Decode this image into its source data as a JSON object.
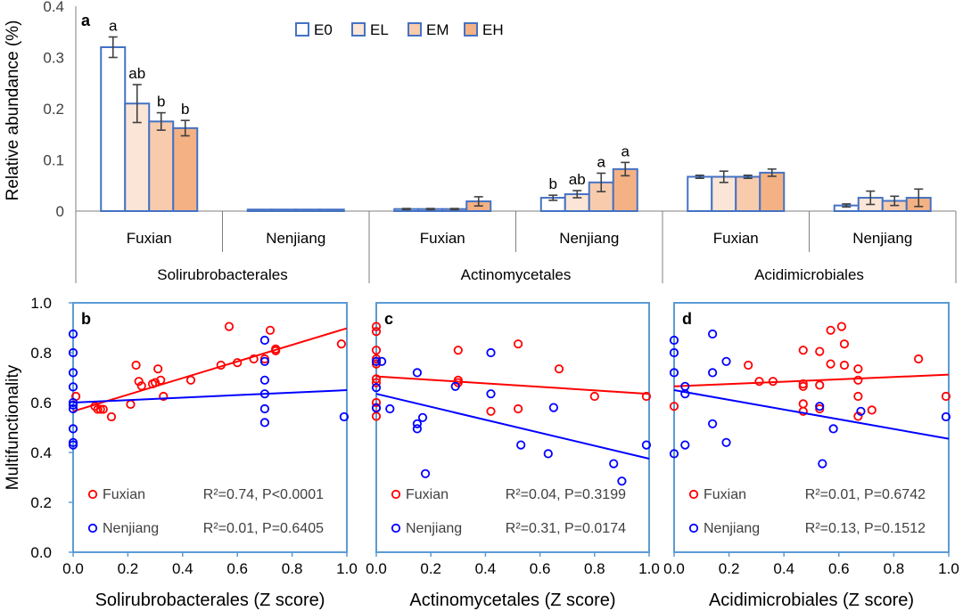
{
  "colors": {
    "E0": "#ffffff",
    "EL": "#fbe5d6",
    "EM": "#f8cbad",
    "EH": "#f4b183",
    "bar_edge": "#4472c4",
    "axis_blue": "#5b9bd5",
    "fuxian": "#ff0000",
    "nenjiang": "#0000ff",
    "error": "#404040"
  },
  "chart_data": [
    {
      "panel": "a",
      "type": "bar",
      "ylabel": "Relative abundance (%)",
      "ylim": [
        0,
        0.4
      ],
      "yticks": [
        "0",
        "0.1",
        "0.2",
        "0.3",
        "0.4"
      ],
      "legend": {
        "placement": "top",
        "entries": [
          "E0",
          "EL",
          "EM",
          "EH"
        ]
      },
      "orders": [
        "Solirubrobacterales",
        "Actinomycetales",
        "Acidimicrobiales"
      ],
      "sites": [
        "Fuxian",
        "Nenjiang"
      ],
      "groups": [
        {
          "order": "Solirubrobacterales",
          "site": "Fuxian",
          "values": [
            0.32,
            0.21,
            0.175,
            0.162
          ],
          "errors": [
            0.02,
            0.037,
            0.017,
            0.015
          ],
          "letters": [
            "a",
            "ab",
            "b",
            "b"
          ]
        },
        {
          "order": "Solirubrobacterales",
          "site": "Nenjiang",
          "values": [
            0.003,
            0.003,
            0.003,
            0.003
          ],
          "errors": [
            0,
            0,
            0,
            0
          ],
          "letters": [
            "",
            "",
            "",
            ""
          ]
        },
        {
          "order": "Actinomycetales",
          "site": "Fuxian",
          "values": [
            0.004,
            0.004,
            0.004,
            0.019
          ],
          "errors": [
            0.001,
            0.001,
            0.001,
            0.009
          ],
          "letters": [
            "",
            "",
            "",
            ""
          ]
        },
        {
          "order": "Actinomycetales",
          "site": "Nenjiang",
          "values": [
            0.026,
            0.033,
            0.056,
            0.082
          ],
          "errors": [
            0.005,
            0.007,
            0.018,
            0.013
          ],
          "letters": [
            "b",
            "ab",
            "a",
            "a"
          ]
        },
        {
          "order": "Acidimicrobiales",
          "site": "Fuxian",
          "values": [
            0.067,
            0.067,
            0.067,
            0.075
          ],
          "errors": [
            0.003,
            0.011,
            0.003,
            0.007
          ],
          "letters": [
            "",
            "",
            "",
            ""
          ]
        },
        {
          "order": "Acidimicrobiales",
          "site": "Nenjiang",
          "values": [
            0.011,
            0.026,
            0.02,
            0.026
          ],
          "errors": [
            0.003,
            0.013,
            0.009,
            0.017
          ],
          "letters": [
            "",
            "",
            "",
            ""
          ]
        }
      ]
    },
    {
      "panel": "b",
      "type": "scatter",
      "xlabel": "Solirubrobacterales (Z score)",
      "ylabel": "Multifunctionality",
      "xlim": [
        0,
        1
      ],
      "ylim": [
        0,
        1
      ],
      "xticks": [
        "0.0",
        "0.2",
        "0.4",
        "0.6",
        "0.8",
        "1.0"
      ],
      "yticks": [
        "0.0",
        "0.2",
        "0.4",
        "0.6",
        "0.8",
        "1.0"
      ],
      "series": [
        {
          "name": "Fuxian",
          "stat": "R²=0.74, P<0.0001",
          "fit": [
            0.565,
            0.898
          ],
          "points": [
            [
              0.01,
              0.625
            ],
            [
              0.08,
              0.585
            ],
            [
              0.09,
              0.573
            ],
            [
              0.1,
              0.573
            ],
            [
              0.11,
              0.573
            ],
            [
              0.14,
              0.543
            ],
            [
              0.21,
              0.593
            ],
            [
              0.23,
              0.75
            ],
            [
              0.24,
              0.685
            ],
            [
              0.25,
              0.667
            ],
            [
              0.29,
              0.675
            ],
            [
              0.3,
              0.68
            ],
            [
              0.31,
              0.735
            ],
            [
              0.32,
              0.69
            ],
            [
              0.33,
              0.625
            ],
            [
              0.43,
              0.69
            ],
            [
              0.54,
              0.75
            ],
            [
              0.57,
              0.905
            ],
            [
              0.6,
              0.76
            ],
            [
              0.66,
              0.775
            ],
            [
              0.7,
              0.775
            ],
            [
              0.72,
              0.89
            ],
            [
              0.74,
              0.808
            ],
            [
              0.74,
              0.815
            ],
            [
              0.98,
              0.835
            ]
          ]
        },
        {
          "name": "Nenjiang",
          "stat": "R²=0.01, P=0.6405",
          "fit": [
            0.6,
            0.65
          ],
          "points": [
            [
              0,
              0.875
            ],
            [
              0,
              0.8
            ],
            [
              0,
              0.72
            ],
            [
              0,
              0.663
            ],
            [
              0,
              0.6
            ],
            [
              0,
              0.59
            ],
            [
              0,
              0.575
            ],
            [
              0,
              0.495
            ],
            [
              0,
              0.44
            ],
            [
              0,
              0.43
            ],
            [
              0.7,
              0.85
            ],
            [
              0.7,
              0.765
            ],
            [
              0.7,
              0.69
            ],
            [
              0.7,
              0.635
            ],
            [
              0.7,
              0.575
            ],
            [
              0.7,
              0.52
            ],
            [
              0.99,
              0.543
            ]
          ]
        }
      ]
    },
    {
      "panel": "c",
      "type": "scatter",
      "xlabel": "Actinomycetales (Z score)",
      "xlim": [
        0,
        1
      ],
      "ylim": [
        0,
        1
      ],
      "xticks": [
        "0.0",
        "0.2",
        "0.4",
        "0.6",
        "0.8",
        "1.0"
      ],
      "series": [
        {
          "name": "Fuxian",
          "stat": "R²=0.04, P=0.3199",
          "fit": [
            0.705,
            0.635
          ],
          "points": [
            [
              0,
              0.905
            ],
            [
              0,
              0.885
            ],
            [
              0,
              0.81
            ],
            [
              0,
              0.775
            ],
            [
              0,
              0.765
            ],
            [
              0,
              0.755
            ],
            [
              0,
              0.695
            ],
            [
              0,
              0.68
            ],
            [
              0,
              0.6
            ],
            [
              0,
              0.58
            ],
            [
              0,
              0.545
            ],
            [
              0.3,
              0.81
            ],
            [
              0.3,
              0.69
            ],
            [
              0.3,
              0.68
            ],
            [
              0.42,
              0.565
            ],
            [
              0.52,
              0.835
            ],
            [
              0.52,
              0.575
            ],
            [
              0.67,
              0.735
            ],
            [
              0.8,
              0.625
            ],
            [
              0.99,
              0.625
            ]
          ]
        },
        {
          "name": "Nenjiang",
          "stat": "R²=0.31, P=0.0174",
          "fit": [
            0.635,
            0.375
          ],
          "points": [
            [
              0,
              0.765
            ],
            [
              0,
              0.66
            ],
            [
              0,
              0.578
            ],
            [
              0.02,
              0.765
            ],
            [
              0.05,
              0.575
            ],
            [
              0.15,
              0.72
            ],
            [
              0.15,
              0.515
            ],
            [
              0.15,
              0.495
            ],
            [
              0.17,
              0.54
            ],
            [
              0.18,
              0.315
            ],
            [
              0.29,
              0.665
            ],
            [
              0.42,
              0.8
            ],
            [
              0.42,
              0.635
            ],
            [
              0.53,
              0.43
            ],
            [
              0.63,
              0.395
            ],
            [
              0.65,
              0.58
            ],
            [
              0.87,
              0.355
            ],
            [
              0.9,
              0.285
            ],
            [
              0.99,
              0.43
            ]
          ]
        }
      ]
    },
    {
      "panel": "d",
      "type": "scatter",
      "xlabel": "Acidimicrobiales (Z score)",
      "xlim": [
        0,
        1
      ],
      "ylim": [
        0,
        1
      ],
      "xticks": [
        "0.0",
        "0.2",
        "0.4",
        "0.6",
        "0.8",
        "1.0"
      ],
      "series": [
        {
          "name": "Fuxian",
          "stat": "R²=0.01, P=0.6742",
          "fit": [
            0.665,
            0.712
          ],
          "points": [
            [
              0,
              0.585
            ],
            [
              0.27,
              0.75
            ],
            [
              0.31,
              0.685
            ],
            [
              0.36,
              0.685
            ],
            [
              0.47,
              0.81
            ],
            [
              0.47,
              0.675
            ],
            [
              0.47,
              0.665
            ],
            [
              0.47,
              0.595
            ],
            [
              0.47,
              0.565
            ],
            [
              0.53,
              0.805
            ],
            [
              0.53,
              0.67
            ],
            [
              0.53,
              0.575
            ],
            [
              0.57,
              0.89
            ],
            [
              0.57,
              0.755
            ],
            [
              0.61,
              0.905
            ],
            [
              0.62,
              0.835
            ],
            [
              0.62,
              0.75
            ],
            [
              0.67,
              0.735
            ],
            [
              0.67,
              0.69
            ],
            [
              0.67,
              0.625
            ],
            [
              0.67,
              0.545
            ],
            [
              0.72,
              0.57
            ],
            [
              0.89,
              0.775
            ],
            [
              0.99,
              0.625
            ]
          ]
        },
        {
          "name": "Nenjiang",
          "stat": "R²=0.13, P=0.1512",
          "fit": [
            0.65,
            0.455
          ],
          "points": [
            [
              0,
              0.85
            ],
            [
              0,
              0.8
            ],
            [
              0,
              0.72
            ],
            [
              0,
              0.395
            ],
            [
              0.04,
              0.665
            ],
            [
              0.04,
              0.635
            ],
            [
              0.04,
              0.43
            ],
            [
              0.14,
              0.875
            ],
            [
              0.14,
              0.72
            ],
            [
              0.14,
              0.515
            ],
            [
              0.19,
              0.765
            ],
            [
              0.19,
              0.44
            ],
            [
              0.53,
              0.585
            ],
            [
              0.54,
              0.355
            ],
            [
              0.58,
              0.495
            ],
            [
              0.68,
              0.565
            ],
            [
              0.99,
              0.543
            ]
          ]
        }
      ]
    }
  ]
}
